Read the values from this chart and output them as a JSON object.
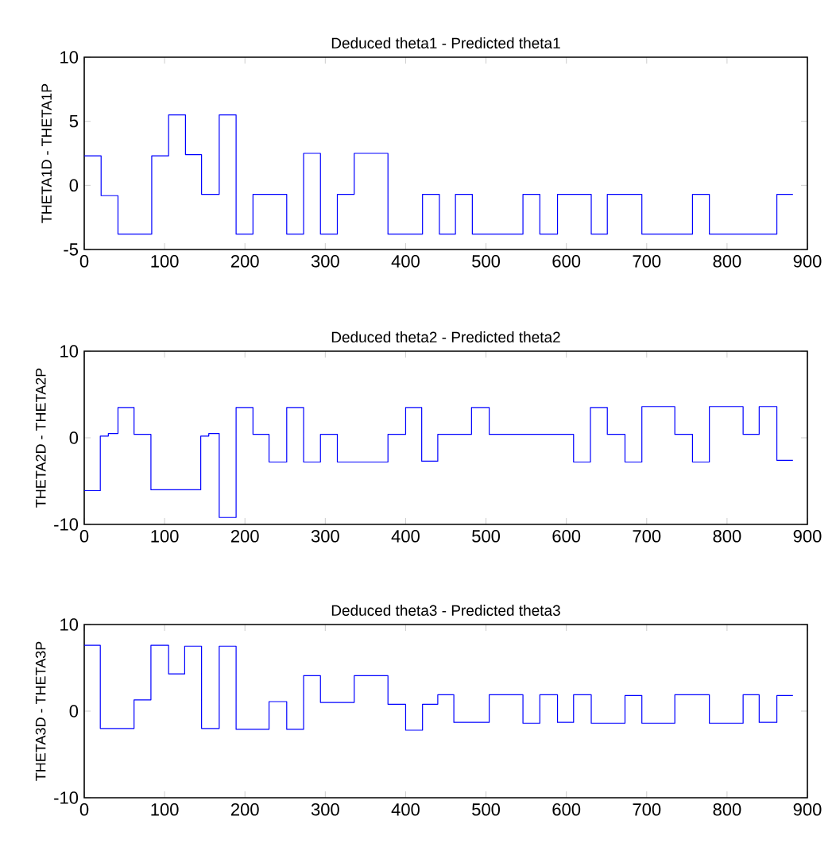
{
  "chart_data": [
    {
      "type": "step",
      "title": "Deduced theta1 - Predicted theta1",
      "ylabel": "THETA1D - THETA1P",
      "color": "#0000ff",
      "xlim": [
        0,
        900
      ],
      "ylim": [
        -5,
        10
      ],
      "xticks": [
        0,
        100,
        200,
        300,
        400,
        500,
        600,
        700,
        800,
        900
      ],
      "yticks": [
        -5,
        0,
        5,
        10
      ],
      "x": [
        0,
        21,
        42,
        84,
        105,
        126,
        146,
        168,
        189,
        210,
        252,
        273,
        294,
        315,
        336,
        378,
        421,
        442,
        462,
        483,
        546,
        567,
        589,
        631,
        651,
        694,
        757,
        778,
        862,
        882
      ],
      "values": [
        2.3,
        -0.8,
        -3.8,
        2.3,
        5.5,
        2.4,
        -0.7,
        5.5,
        -3.8,
        -0.7,
        -3.8,
        2.5,
        -3.8,
        -0.7,
        2.5,
        -3.8,
        -0.7,
        -3.8,
        -0.7,
        -3.8,
        -0.7,
        -3.8,
        -0.7,
        -3.8,
        -0.7,
        -3.8,
        -0.7,
        -3.8,
        -0.7,
        -0.7
      ]
    },
    {
      "type": "step",
      "title": "Deduced theta2 - Predicted theta2",
      "ylabel": "THETA2D - THETA2P",
      "color": "#0000ff",
      "xlim": [
        0,
        900
      ],
      "ylim": [
        -10,
        10
      ],
      "xticks": [
        0,
        100,
        200,
        300,
        400,
        500,
        600,
        700,
        800,
        900
      ],
      "yticks": [
        -10,
        0,
        10
      ],
      "x": [
        0,
        20,
        30,
        42,
        62,
        83,
        145,
        155,
        168,
        189,
        210,
        230,
        252,
        273,
        294,
        315,
        378,
        400,
        420,
        440,
        482,
        504,
        609,
        630,
        651,
        673,
        694,
        735,
        757,
        778,
        820,
        840,
        862,
        882
      ],
      "values": [
        -6.1,
        0.2,
        0.5,
        3.5,
        0.4,
        -6.0,
        0.2,
        0.5,
        -9.2,
        3.5,
        0.4,
        -2.8,
        3.5,
        -2.8,
        0.4,
        -2.8,
        0.4,
        3.5,
        -2.7,
        0.4,
        3.5,
        0.4,
        -2.8,
        3.5,
        0.4,
        -2.8,
        3.6,
        0.4,
        -2.8,
        3.6,
        0.4,
        3.6,
        -2.6,
        -2.6
      ]
    },
    {
      "type": "step",
      "title": "Deduced theta3 - Predicted theta3",
      "ylabel": "THETA3D - THETA3P",
      "color": "#0000ff",
      "xlim": [
        0,
        900
      ],
      "ylim": [
        -10,
        10
      ],
      "xticks": [
        0,
        100,
        200,
        300,
        400,
        500,
        600,
        700,
        800,
        900
      ],
      "yticks": [
        -10,
        0,
        10
      ],
      "x": [
        0,
        20,
        62,
        83,
        105,
        125,
        146,
        168,
        189,
        230,
        252,
        273,
        294,
        336,
        378,
        400,
        421,
        440,
        460,
        504,
        546,
        567,
        589,
        609,
        631,
        673,
        694,
        735,
        778,
        820,
        840,
        862,
        882
      ],
      "values": [
        7.6,
        -2.0,
        1.3,
        7.6,
        4.3,
        7.5,
        -2.0,
        7.5,
        -2.1,
        1.1,
        -2.1,
        4.1,
        1.0,
        4.1,
        0.8,
        -2.2,
        0.8,
        1.9,
        -1.3,
        1.9,
        -1.4,
        1.9,
        -1.3,
        1.9,
        -1.4,
        1.8,
        -1.4,
        1.9,
        -1.4,
        1.9,
        -1.3,
        1.8,
        1.8
      ]
    }
  ]
}
